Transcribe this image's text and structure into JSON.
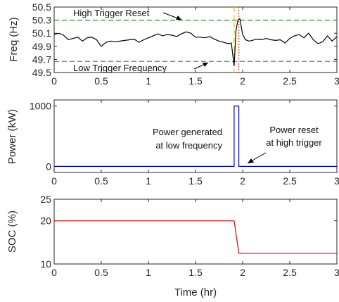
{
  "chart_data": [
    {
      "id": "freq",
      "type": "line",
      "ylabel": "Freq (Hz)",
      "xlim": [
        0,
        3
      ],
      "ylim": [
        49.5,
        50.5
      ],
      "yticks": [
        "50.5",
        "50.3",
        "50.1",
        "49.9",
        "49.7",
        "49.5"
      ],
      "ytick_values": [
        50.5,
        50.3,
        50.1,
        49.9,
        49.7,
        49.5
      ],
      "xticks": [
        "0",
        "0.5",
        "1",
        "1.5",
        "2",
        "2.5",
        "3"
      ],
      "xtick_values": [
        0,
        0.5,
        1,
        1.5,
        2,
        2.5,
        3
      ],
      "series": [
        {
          "color": "#000000",
          "x": [
            0.0,
            0.05,
            0.1,
            0.15,
            0.2,
            0.25,
            0.3,
            0.35,
            0.4,
            0.45,
            0.5,
            0.55,
            0.6,
            0.65,
            0.7,
            0.75,
            0.8,
            0.85,
            0.9,
            0.95,
            1.0,
            1.05,
            1.1,
            1.15,
            1.2,
            1.25,
            1.3,
            1.35,
            1.4,
            1.45,
            1.5,
            1.55,
            1.6,
            1.65,
            1.7,
            1.75,
            1.8,
            1.85,
            1.88,
            1.91,
            1.93,
            1.95,
            1.97,
            2.0,
            2.03,
            2.07,
            2.1,
            2.15,
            2.2,
            2.25,
            2.3,
            2.35,
            2.4,
            2.45,
            2.5,
            2.55,
            2.6,
            2.65,
            2.7,
            2.75,
            2.8,
            2.85,
            2.9,
            2.95,
            3.0
          ],
          "y": [
            50.08,
            50.1,
            50.07,
            50.0,
            50.02,
            50.04,
            49.98,
            50.03,
            50.04,
            50.0,
            49.9,
            49.96,
            49.98,
            49.97,
            49.98,
            49.99,
            50.0,
            50.01,
            49.96,
            50.0,
            50.03,
            50.06,
            50.09,
            50.06,
            50.08,
            50.07,
            50.05,
            50.09,
            50.12,
            50.1,
            50.04,
            50.04,
            50.03,
            50.05,
            50.01,
            49.98,
            49.96,
            49.94,
            49.95,
            49.6,
            50.15,
            50.3,
            50.32,
            50.08,
            50.0,
            49.98,
            49.99,
            50.01,
            50.0,
            50.02,
            50.0,
            49.99,
            50.0,
            49.95,
            50.02,
            50.06,
            50.08,
            50.03,
            50.1,
            50.0,
            49.94,
            49.97,
            50.06,
            49.98,
            50.05
          ]
        }
      ],
      "reference_lines": [
        {
          "kind": "horizontal",
          "value": 50.3,
          "color": "#228B22",
          "style": "dashed"
        },
        {
          "kind": "horizontal",
          "value": 49.67,
          "color": "#228B22",
          "style": "dashed"
        },
        {
          "kind": "vertical",
          "value": 1.91,
          "color": "#E8C000",
          "style": "dashed"
        },
        {
          "kind": "vertical",
          "value": 1.96,
          "color": "#E03030",
          "style": "dotted"
        }
      ],
      "annotations": [
        {
          "text": "High Trigger Reset"
        },
        {
          "text": "Low Trigger Frequency"
        }
      ]
    },
    {
      "id": "power",
      "type": "line",
      "ylabel": "Power (kW)",
      "xlim": [
        0,
        3
      ],
      "ylim": [
        -100,
        1100
      ],
      "yticks": [
        "1000",
        "0"
      ],
      "ytick_values": [
        1000,
        0
      ],
      "xticks": [
        "0",
        "0.5",
        "1",
        "1.5",
        "2",
        "2.5",
        "3"
      ],
      "xtick_values": [
        0,
        0.5,
        1,
        1.5,
        2,
        2.5,
        3
      ],
      "series": [
        {
          "color": "#0000CC",
          "x": [
            0,
            1.91,
            1.91,
            1.96,
            1.96,
            3
          ],
          "y": [
            0,
            0,
            1000,
            1000,
            0,
            0
          ]
        }
      ],
      "annotations": [
        {
          "text": "Power generated",
          "text2": "at low frequency"
        },
        {
          "text": "Power reset",
          "text2": "at high trigger"
        }
      ]
    },
    {
      "id": "soc",
      "type": "line",
      "ylabel": "SOC (%)",
      "xlabel": "Time (hr)",
      "xlim": [
        0,
        3
      ],
      "ylim": [
        10,
        25
      ],
      "yticks": [
        "25",
        "20",
        "10"
      ],
      "ytick_values": [
        25,
        20,
        10
      ],
      "xticks": [
        "0",
        "0.5",
        "1",
        "1.5",
        "2",
        "2.5",
        "3"
      ],
      "xtick_values": [
        0,
        0.5,
        1,
        1.5,
        2,
        2.5,
        3
      ],
      "series": [
        {
          "color": "#E00000",
          "x": [
            0,
            1.91,
            1.96,
            3
          ],
          "y": [
            20,
            20,
            12.5,
            12.5
          ]
        }
      ]
    }
  ]
}
